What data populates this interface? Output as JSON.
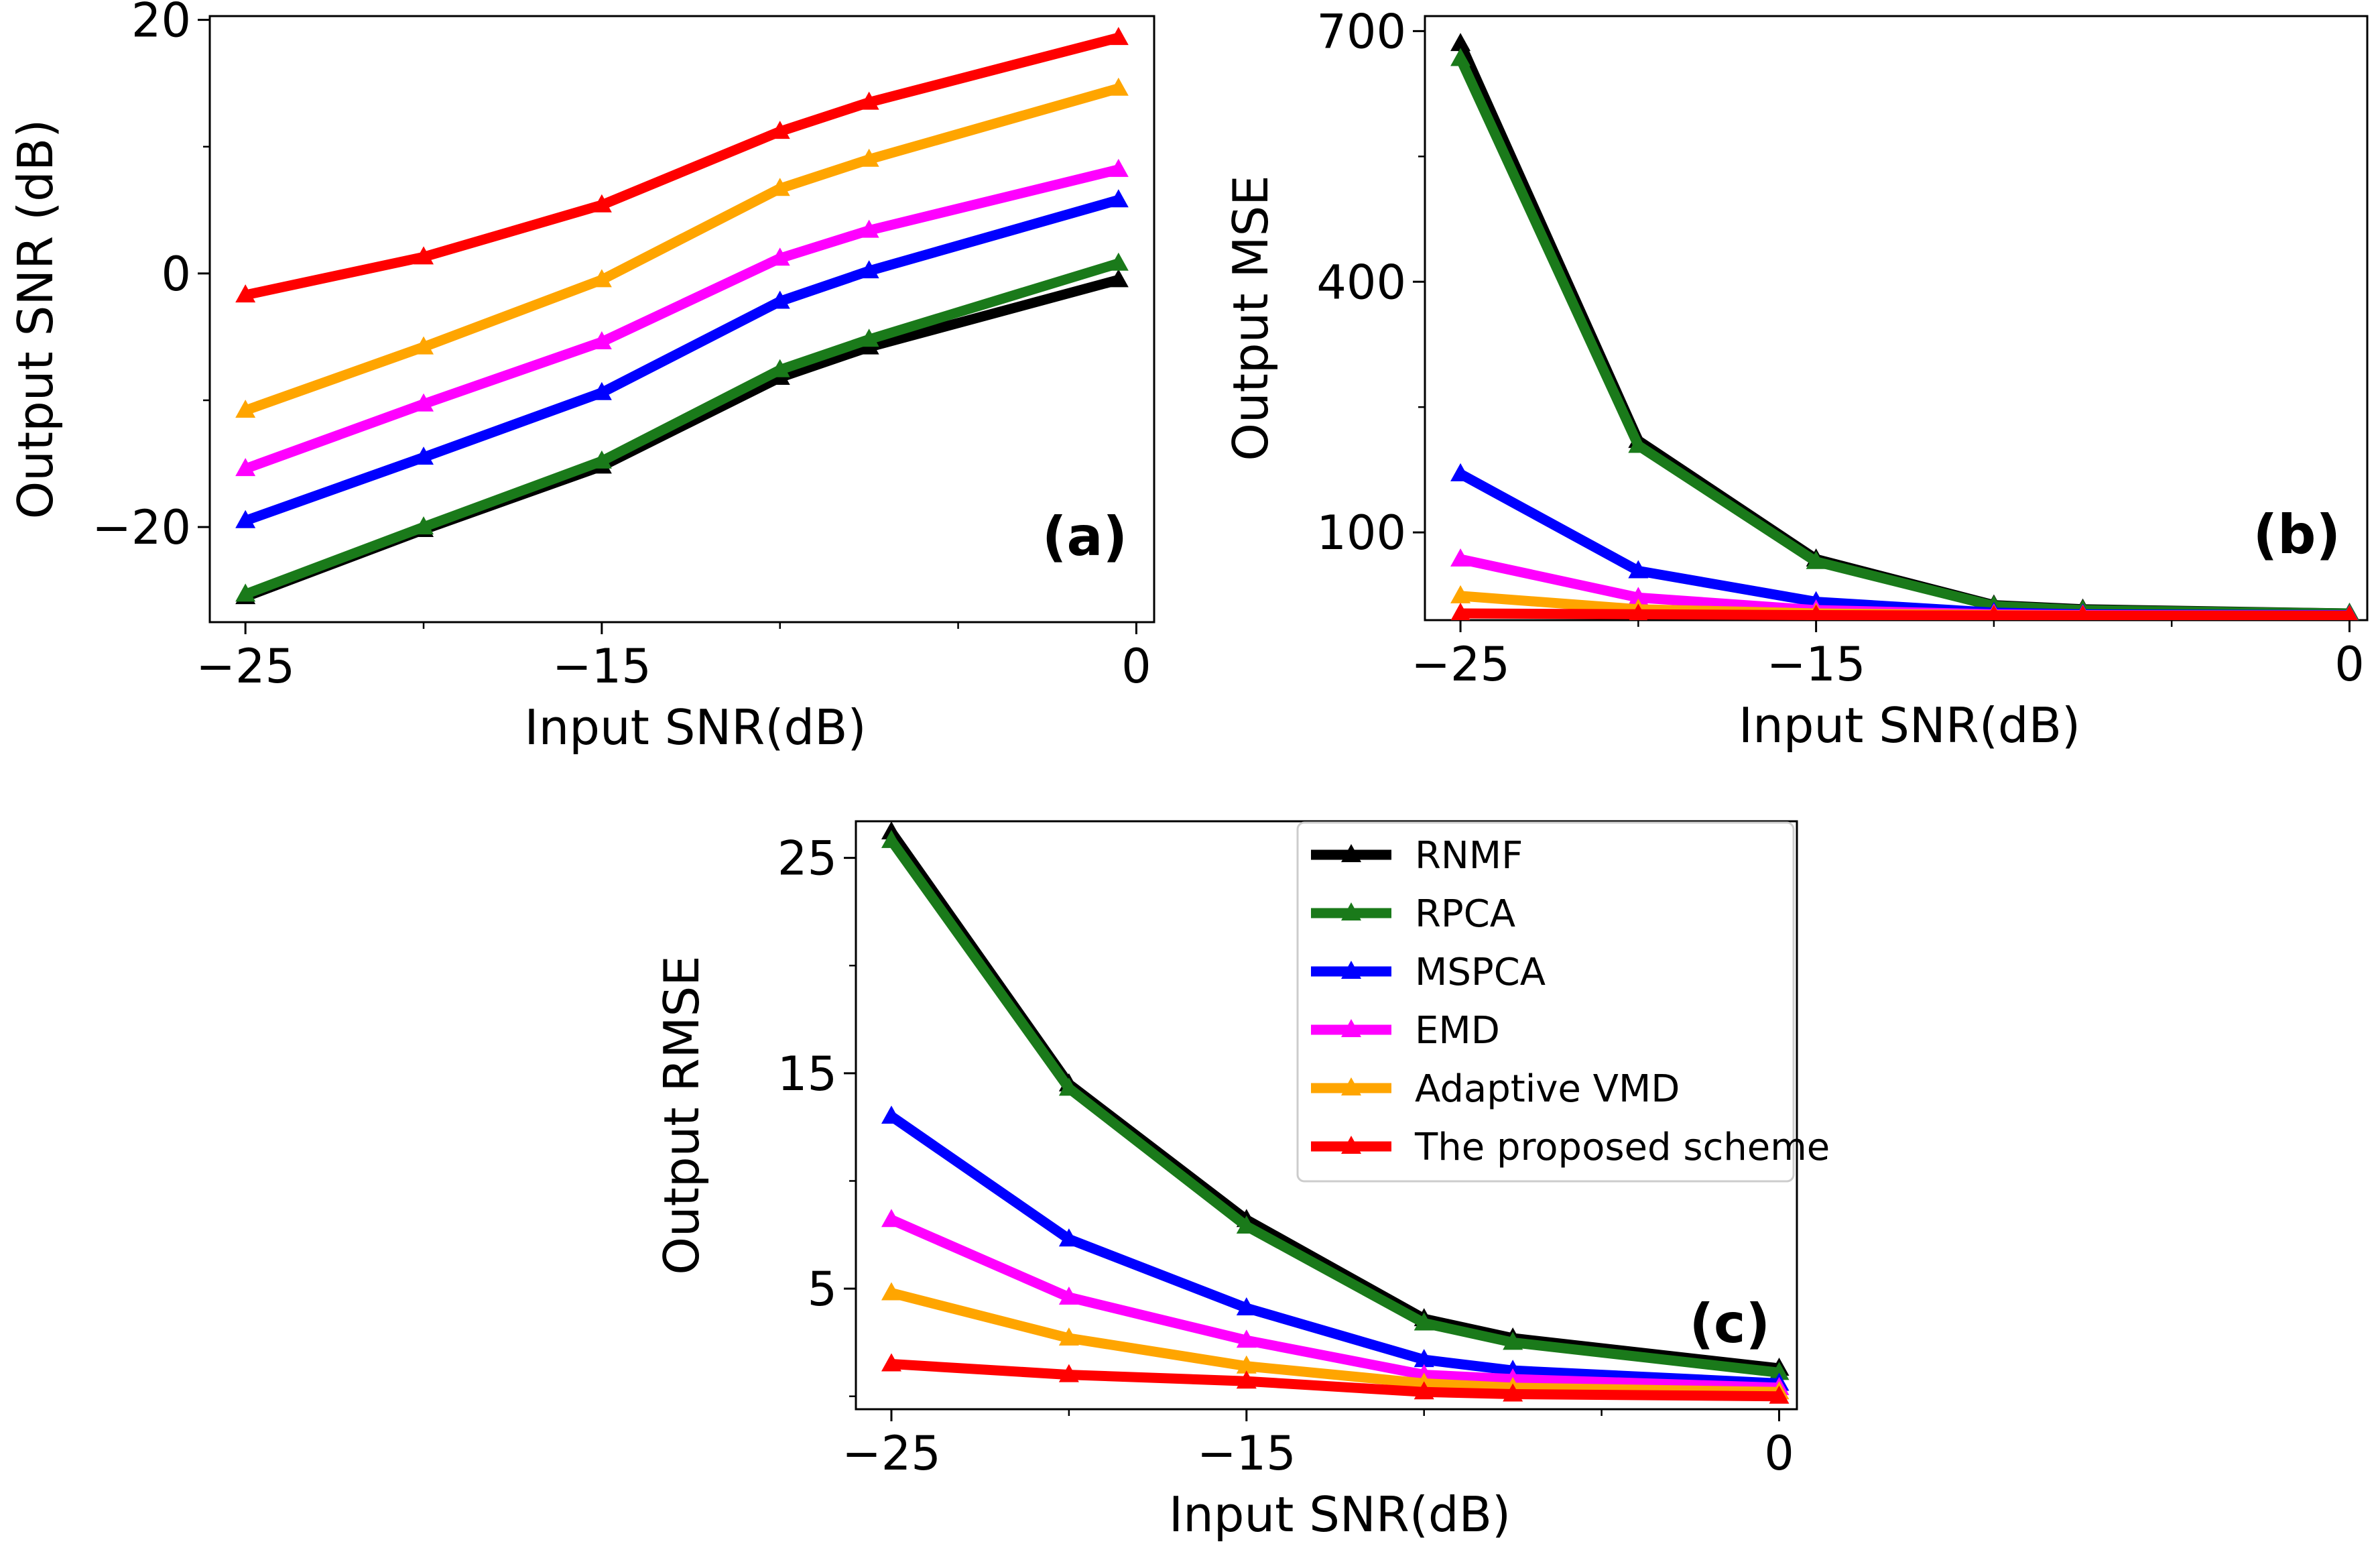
{
  "figure_title": "",
  "legend_title": "",
  "colors": {
    "RNMF": "#000000",
    "RPCA": "#1a7a1a",
    "MSPCA": "#0000ff",
    "EMD": "#ff00ff",
    "Adaptive VMD": "#ffa500",
    "The proposed scheme": "#ff0000"
  },
  "chart_data": [
    {
      "panel": "a",
      "panel_label": "(a)",
      "type": "line",
      "title": "",
      "xlabel": "Input SNR(dB)",
      "ylabel": "Output SNR (dB)",
      "xlim": [
        -26,
        0.5
      ],
      "ylim": [
        -27.5,
        20.3
      ],
      "xticks": [
        -25,
        -15,
        0
      ],
      "xtick_labels": [
        "−25",
        "−15",
        "0"
      ],
      "xminor": [
        -20,
        -10,
        -5
      ],
      "yticks": [
        20,
        0,
        -20
      ],
      "ytick_labels": [
        "20",
        "0",
        "−20"
      ],
      "yminor": [
        10,
        -10
      ],
      "x": [
        -25,
        -20,
        -15,
        -10,
        -7.5,
        -0.5
      ],
      "series": [
        {
          "name": "RNMF",
          "values": [
            -25.5,
            -20.2,
            -15.2,
            -8.2,
            -5.8,
            -0.5
          ]
        },
        {
          "name": "RPCA",
          "values": [
            -25.3,
            -20.0,
            -14.8,
            -7.6,
            -5.2,
            0.8
          ]
        },
        {
          "name": "MSPCA",
          "values": [
            -19.5,
            -14.5,
            -9.4,
            -2.2,
            0.2,
            5.8
          ]
        },
        {
          "name": "EMD",
          "values": [
            -15.4,
            -10.3,
            -5.4,
            1.2,
            3.4,
            8.2
          ]
        },
        {
          "name": "Adaptive VMD",
          "values": [
            -10.8,
            -5.8,
            -0.5,
            6.7,
            9.0,
            14.6
          ]
        },
        {
          "name": "The proposed scheme",
          "values": [
            -1.7,
            1.3,
            5.4,
            11.2,
            13.5,
            18.6
          ]
        }
      ]
    },
    {
      "panel": "b",
      "panel_label": "(b)",
      "type": "line",
      "title": "",
      "xlabel": "Input SNR(dB)",
      "ylabel": "Output MSE",
      "xlim": [
        -26,
        0.5
      ],
      "ylim": [
        -5,
        718
      ],
      "xticks": [
        -25,
        -15,
        0
      ],
      "xtick_labels": [
        "−25",
        "−15",
        "0"
      ],
      "xminor": [
        -20,
        -10,
        -5
      ],
      "yticks": [
        700,
        400,
        100
      ],
      "ytick_labels": [
        "700",
        "400",
        "100"
      ],
      "yminor": [
        550,
        250
      ],
      "x": [
        -25,
        -20,
        -15,
        -10,
        -7.5,
        0
      ],
      "series": [
        {
          "name": "RNMF",
          "values": [
            685,
            210,
            68,
            13,
            8,
            3
          ]
        },
        {
          "name": "RPCA",
          "values": [
            667,
            204,
            65,
            12,
            7,
            3
          ]
        },
        {
          "name": "MSPCA",
          "values": [
            170,
            54,
            17,
            4,
            2,
            1
          ]
        },
        {
          "name": "EMD",
          "values": [
            68,
            22,
            7,
            2,
            1,
            0.5
          ]
        },
        {
          "name": "Adaptive VMD",
          "values": [
            24,
            8,
            3,
            1,
            0.5,
            0.3
          ]
        },
        {
          "name": "The proposed scheme",
          "values": [
            3,
            2,
            1,
            0.5,
            0.3,
            0.2
          ]
        }
      ]
    },
    {
      "panel": "c",
      "panel_label": "(c)",
      "type": "line",
      "title": "",
      "xlabel": "Input SNR(dB)",
      "ylabel": "Output RMSE",
      "xlim": [
        -26,
        0.5
      ],
      "ylim": [
        -0.6,
        26.7
      ],
      "xticks": [
        -25,
        -15,
        0
      ],
      "xtick_labels": [
        "−25",
        "−15",
        "0"
      ],
      "xminor": [
        -20,
        -10,
        -5
      ],
      "yticks": [
        25,
        15,
        5
      ],
      "ytick_labels": [
        "25",
        "15",
        "5"
      ],
      "yminor": [
        20,
        10,
        0
      ],
      "x": [
        -25,
        -20,
        -15,
        -10,
        -7.5,
        0
      ],
      "series": [
        {
          "name": "RNMF",
          "values": [
            26.2,
            14.5,
            8.2,
            3.6,
            2.7,
            1.3
          ]
        },
        {
          "name": "RPCA",
          "values": [
            25.8,
            14.3,
            7.9,
            3.4,
            2.5,
            1.1
          ]
        },
        {
          "name": "MSPCA",
          "values": [
            13.0,
            7.3,
            4.1,
            1.7,
            1.2,
            0.6
          ]
        },
        {
          "name": "EMD",
          "values": [
            8.2,
            4.6,
            2.6,
            1.0,
            0.8,
            0.4
          ]
        },
        {
          "name": "Adaptive VMD",
          "values": [
            4.8,
            2.7,
            1.4,
            0.6,
            0.4,
            0.2
          ]
        },
        {
          "name": "The proposed scheme",
          "values": [
            1.5,
            1.0,
            0.7,
            0.2,
            0.1,
            0.0
          ]
        }
      ],
      "legend": {
        "placement": "top-right",
        "entries": [
          "RNMF",
          "RPCA",
          "MSPCA",
          "EMD",
          "Adaptive VMD",
          "The proposed scheme"
        ]
      }
    }
  ]
}
